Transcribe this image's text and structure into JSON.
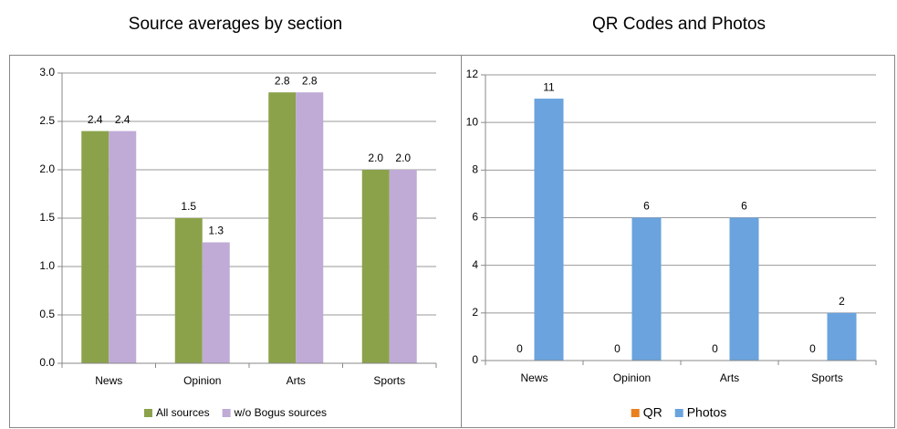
{
  "chart_data": [
    {
      "type": "bar",
      "title": "Source averages by section",
      "categories": [
        "News",
        "Opinion",
        "Arts",
        "Sports"
      ],
      "series": [
        {
          "name": "All sources",
          "color": "#8ba24b",
          "values": [
            2.4,
            1.5,
            2.8,
            2.0
          ],
          "value_labels": [
            "2.4",
            "1.5",
            "2.8",
            "2.0"
          ]
        },
        {
          "name": "w/o Bogus sources",
          "color": "#bfabd6",
          "values": [
            2.4,
            1.25,
            2.8,
            2.0
          ],
          "value_labels": [
            "2.4",
            "1.3",
            "2.8",
            "2.0"
          ]
        }
      ],
      "ylim": [
        0,
        3
      ],
      "yticks": [
        {
          "value": 0,
          "label": "0.0"
        },
        {
          "value": 0.5,
          "label": "0.5"
        },
        {
          "value": 1,
          "label": "1.0"
        },
        {
          "value": 1.5,
          "label": "1.5"
        },
        {
          "value": 2,
          "label": "2.0"
        },
        {
          "value": 2.5,
          "label": "2.5"
        },
        {
          "value": 3,
          "label": "3.0"
        }
      ],
      "grid": true,
      "legend": "bottom"
    },
    {
      "type": "bar",
      "title": "QR Codes and Photos",
      "categories": [
        "News",
        "Opinion",
        "Arts",
        "Sports"
      ],
      "series": [
        {
          "name": "QR",
          "color": "#e8801e",
          "values": [
            0,
            0,
            0,
            0
          ]
        },
        {
          "name": "Photos",
          "color": "#6aa3dd",
          "values": [
            11,
            6,
            6,
            2
          ]
        }
      ],
      "ylim": [
        0,
        12
      ],
      "yticks": [
        0,
        2,
        4,
        6,
        8,
        10,
        12
      ],
      "grid": true,
      "legend": "bottom"
    }
  ]
}
